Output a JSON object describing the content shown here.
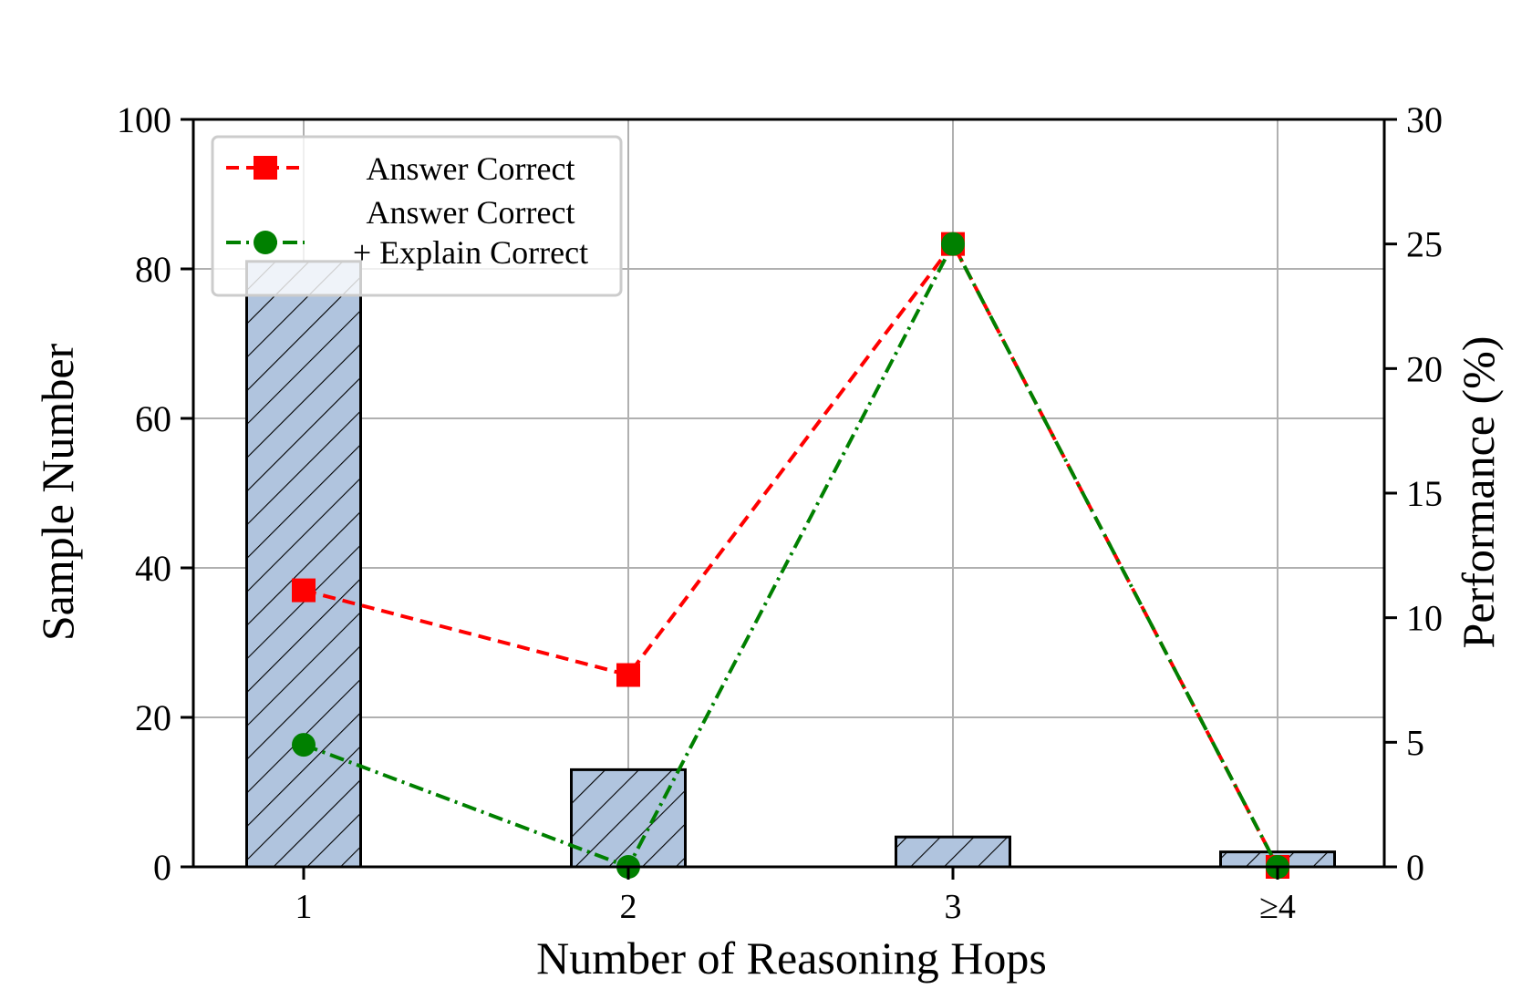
{
  "chart_data": {
    "type": "bar",
    "xlabel": "Number of Reasoning Hops",
    "ylabel_left": "Sample Number",
    "ylabel_right": "Performance (%)",
    "categories": [
      "1",
      "2",
      "3",
      "≥4"
    ],
    "ylim_left": [
      0,
      100
    ],
    "ylim_right": [
      0,
      30
    ],
    "yticks_left": [
      "0",
      "20",
      "40",
      "60",
      "80",
      "100"
    ],
    "yticks_right": [
      "0",
      "5",
      "10",
      "15",
      "20",
      "25",
      "30"
    ],
    "grid": true,
    "legend_position": "top-left",
    "bar_series": {
      "axis": "left",
      "values": [
        81,
        13,
        4,
        2
      ],
      "color": "#b0c4de",
      "hatch": "diagonal"
    },
    "line_series": [
      {
        "name": "Answer Correct",
        "axis": "right",
        "values": [
          11.1,
          7.7,
          25.0,
          0.0
        ],
        "color": "#ff0000",
        "marker": "square",
        "linestyle": "dashed"
      },
      {
        "name": "Answer Correct\n+ Explain Correct",
        "axis": "right",
        "values": [
          4.9,
          0.0,
          25.0,
          0.0
        ],
        "color": "#008000",
        "marker": "circle",
        "linestyle": "dashdot"
      }
    ]
  }
}
